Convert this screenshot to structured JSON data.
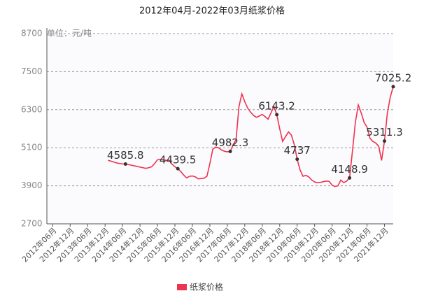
{
  "chart_data": {
    "type": "line",
    "title": "2012年04月-2022年03月纸浆价格",
    "ylabel": "单位：元/吨",
    "categories": [
      null,
      null,
      "2012年06月",
      null,
      null,
      null,
      null,
      null,
      "2012年12月",
      null,
      null,
      null,
      null,
      null,
      "2013年06月",
      null,
      null,
      null,
      null,
      null,
      "2013年12月",
      null,
      null,
      null,
      null,
      null,
      "2014年06月",
      null,
      null,
      null,
      null,
      null,
      "2014年12月",
      null,
      null,
      null,
      null,
      null,
      "2015年06月",
      null,
      null,
      null,
      null,
      null,
      "2015年12月",
      null,
      null,
      null,
      null,
      null,
      "2016年06月",
      null,
      null,
      null,
      null,
      null,
      "2016年12月",
      null,
      null,
      null,
      null,
      null,
      "2017年06月",
      null,
      null,
      null,
      null,
      null,
      "2017年12月",
      null,
      null,
      null,
      null,
      null,
      "2018年06月",
      null,
      null,
      null,
      null,
      null,
      "2018年12月",
      null,
      null,
      null,
      null,
      null,
      "2019年06月",
      null,
      null,
      null,
      null,
      null,
      "2019年12月",
      null,
      null,
      null,
      null,
      null,
      "2020年06月",
      null,
      null,
      null,
      null,
      null,
      "2020年12月",
      null,
      null,
      null,
      null,
      null,
      "2021年06月",
      null,
      null,
      null,
      null,
      null,
      "2021年12月",
      null,
      null,
      null
    ],
    "series": [
      {
        "name": "纸浆价格",
        "color": "#ee3350",
        "values": [
          null,
          null,
          null,
          null,
          null,
          null,
          null,
          null,
          null,
          null,
          null,
          null,
          null,
          null,
          null,
          null,
          null,
          null,
          null,
          null,
          null,
          4700,
          4680,
          4650,
          4620,
          4600,
          4590,
          4585.8,
          4570,
          4550,
          4530,
          4510,
          4490,
          4470,
          4450,
          4470,
          4500,
          4600,
          4720,
          4740,
          4720,
          4700,
          4710,
          4580,
          4500,
          4439.5,
          4350,
          4240,
          4150,
          4200,
          4210,
          4180,
          4120,
          4130,
          4140,
          4200,
          4600,
          5050,
          5120,
          5100,
          5030,
          4990,
          4970,
          4982.3,
          5200,
          5350,
          6400,
          6800,
          6550,
          6350,
          6220,
          6120,
          6060,
          6100,
          6150,
          6080,
          6000,
          6200,
          6400,
          6143.2,
          5700,
          5300,
          5450,
          5600,
          5500,
          5200,
          4737,
          4400,
          4200,
          4230,
          4180,
          4080,
          4020,
          4000,
          4010,
          4030,
          4050,
          4040,
          3920,
          3880,
          3900,
          4080,
          4000,
          4050,
          4148.9,
          5000,
          5900,
          6450,
          6200,
          5900,
          5750,
          5400,
          5300,
          5250,
          5150,
          4700,
          5311.3,
          6200,
          6700,
          7025.2
        ],
        "value_labels": [
          null,
          null,
          null,
          null,
          null,
          null,
          null,
          null,
          null,
          null,
          null,
          null,
          null,
          null,
          null,
          null,
          null,
          null,
          null,
          null,
          null,
          null,
          null,
          null,
          null,
          null,
          null,
          "4585.8",
          null,
          null,
          null,
          null,
          null,
          null,
          null,
          null,
          null,
          null,
          null,
          null,
          null,
          null,
          null,
          null,
          null,
          "4439.5",
          null,
          null,
          null,
          null,
          null,
          null,
          null,
          null,
          null,
          null,
          null,
          null,
          null,
          null,
          null,
          null,
          null,
          "4982.3",
          null,
          null,
          null,
          null,
          null,
          null,
          null,
          null,
          null,
          null,
          null,
          null,
          null,
          null,
          null,
          "6143.2",
          null,
          null,
          null,
          null,
          null,
          null,
          "4737",
          null,
          null,
          null,
          null,
          null,
          null,
          null,
          null,
          null,
          null,
          null,
          null,
          null,
          null,
          null,
          null,
          null,
          "4148.9",
          null,
          null,
          null,
          null,
          null,
          null,
          null,
          null,
          null,
          null,
          null,
          "5311.3",
          null,
          null,
          "7025.2"
        ]
      }
    ],
    "ylim": [
      2700,
      8700
    ],
    "yticks": [
      2700,
      3900,
      5100,
      6300,
      7500,
      8700
    ],
    "grid": true
  }
}
